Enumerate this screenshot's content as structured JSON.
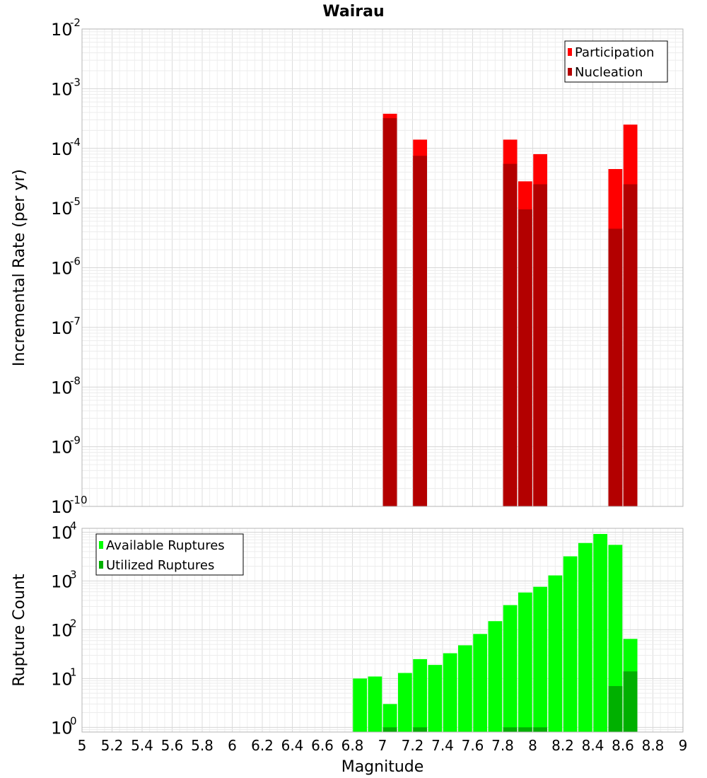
{
  "chart_data": [
    {
      "type": "bar",
      "title": "Wairau",
      "xlabel": "",
      "ylabel": "Incremental Rate (per yr)",
      "y_scale": "log",
      "xlim": [
        5,
        9
      ],
      "ylim": [
        1e-10,
        0.01
      ],
      "y_ticks": [
        {
          "base": "10",
          "exp": "-10",
          "value": 1e-10
        },
        {
          "base": "10",
          "exp": "-9",
          "value": 1e-09
        },
        {
          "base": "10",
          "exp": "-8",
          "value": 1e-08
        },
        {
          "base": "10",
          "exp": "-7",
          "value": 1e-07
        },
        {
          "base": "10",
          "exp": "-6",
          "value": 1e-06
        },
        {
          "base": "10",
          "exp": "-5",
          "value": 1e-05
        },
        {
          "base": "10",
          "exp": "-4",
          "value": 0.0001
        },
        {
          "base": "10",
          "exp": "-3",
          "value": 0.001
        },
        {
          "base": "10",
          "exp": "-2",
          "value": 0.01
        }
      ],
      "grid": true,
      "legend_position": "top-right",
      "series": [
        {
          "name": "Participation",
          "color": "#ff0000",
          "points": [
            {
              "x": 7.05,
              "y": 0.00038
            },
            {
              "x": 7.25,
              "y": 0.00014
            },
            {
              "x": 7.85,
              "y": 0.00014
            },
            {
              "x": 7.95,
              "y": 2.8e-05
            },
            {
              "x": 8.05,
              "y": 8e-05
            },
            {
              "x": 8.55,
              "y": 4.5e-05
            },
            {
              "x": 8.65,
              "y": 0.00025
            }
          ]
        },
        {
          "name": "Nucleation",
          "color": "#b30000",
          "points": [
            {
              "x": 7.05,
              "y": 0.00032
            },
            {
              "x": 7.25,
              "y": 7.5e-05
            },
            {
              "x": 7.85,
              "y": 5.5e-05
            },
            {
              "x": 7.95,
              "y": 9.5e-06
            },
            {
              "x": 8.05,
              "y": 2.5e-05
            },
            {
              "x": 8.55,
              "y": 4.5e-06
            },
            {
              "x": 8.65,
              "y": 2.5e-05
            }
          ]
        }
      ]
    },
    {
      "type": "bar",
      "title": "",
      "xlabel": "Magnitude",
      "ylabel": "Rupture Count",
      "y_scale": "log",
      "xlim": [
        5,
        9
      ],
      "ylim": [
        0.8,
        12000
      ],
      "x_ticks": [
        "5",
        "5.2",
        "5.4",
        "5.6",
        "5.8",
        "6",
        "6.2",
        "6.4",
        "6.6",
        "6.8",
        "7",
        "7.2",
        "7.4",
        "7.6",
        "7.8",
        "8",
        "8.2",
        "8.4",
        "8.6",
        "8.8",
        "9"
      ],
      "y_ticks": [
        {
          "base": "10",
          "exp": "0",
          "value": 1
        },
        {
          "base": "10",
          "exp": "1",
          "value": 10
        },
        {
          "base": "10",
          "exp": "2",
          "value": 100
        },
        {
          "base": "10",
          "exp": "3",
          "value": 1000
        },
        {
          "base": "10",
          "exp": "4",
          "value": 10000
        }
      ],
      "grid": true,
      "legend_position": "top-left",
      "series": [
        {
          "name": "Available Ruptures",
          "color": "#00ff00",
          "points": [
            {
              "x": 6.85,
              "y": 10
            },
            {
              "x": 6.95,
              "y": 11
            },
            {
              "x": 7.05,
              "y": 3
            },
            {
              "x": 7.15,
              "y": 13
            },
            {
              "x": 7.25,
              "y": 25
            },
            {
              "x": 7.35,
              "y": 19
            },
            {
              "x": 7.45,
              "y": 33
            },
            {
              "x": 7.55,
              "y": 48
            },
            {
              "x": 7.65,
              "y": 82
            },
            {
              "x": 7.75,
              "y": 150
            },
            {
              "x": 7.85,
              "y": 320
            },
            {
              "x": 7.95,
              "y": 580
            },
            {
              "x": 8.05,
              "y": 760
            },
            {
              "x": 8.15,
              "y": 1300
            },
            {
              "x": 8.25,
              "y": 3200
            },
            {
              "x": 8.35,
              "y": 6000
            },
            {
              "x": 8.45,
              "y": 9200
            },
            {
              "x": 8.55,
              "y": 5500
            },
            {
              "x": 8.65,
              "y": 65
            }
          ]
        },
        {
          "name": "Utilized Ruptures",
          "color": "#00b000",
          "points": [
            {
              "x": 7.05,
              "y": 1
            },
            {
              "x": 7.25,
              "y": 1
            },
            {
              "x": 7.85,
              "y": 1
            },
            {
              "x": 7.95,
              "y": 1
            },
            {
              "x": 8.05,
              "y": 1
            },
            {
              "x": 8.55,
              "y": 7
            },
            {
              "x": 8.65,
              "y": 14
            }
          ]
        }
      ]
    }
  ]
}
